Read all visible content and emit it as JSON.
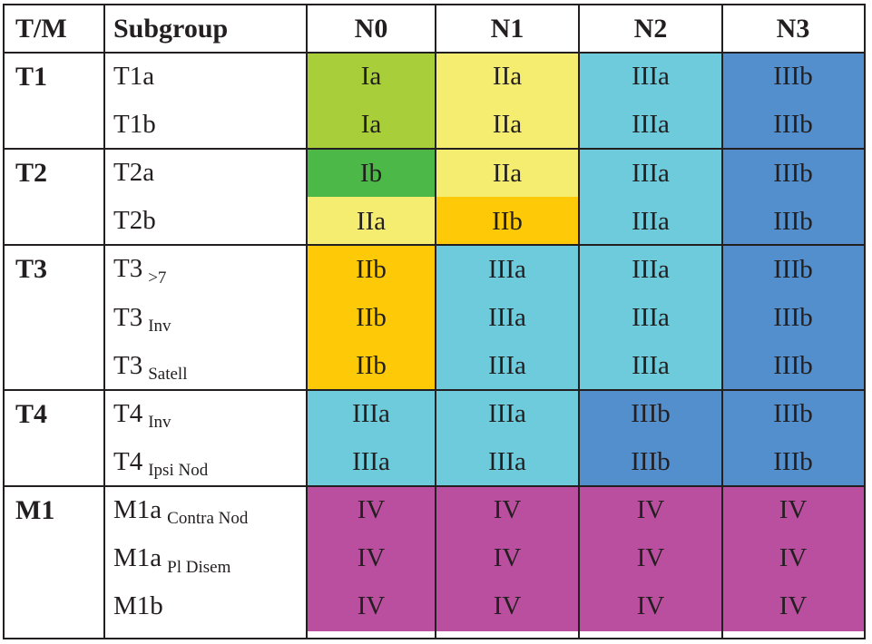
{
  "header": {
    "tm": "T/M",
    "subgroup": "Subgroup",
    "n_columns": [
      "N0",
      "N1",
      "N2",
      "N3"
    ]
  },
  "colors": {
    "Ia": "#a8cf3a",
    "Ib": "#4cb848",
    "IIa": "#f5ed6f",
    "IIb": "#fec907",
    "IIIa": "#6ecbdc",
    "IIIb": "#528fcc",
    "IV": "#bb4f9f"
  },
  "groups": [
    {
      "label": "T1",
      "rows": [
        {
          "main": "T1a",
          "sub": "",
          "stages": [
            "Ia",
            "IIa",
            "IIIa",
            "IIIb"
          ]
        },
        {
          "main": "T1b",
          "sub": "",
          "stages": [
            "Ia",
            "IIa",
            "IIIa",
            "IIIb"
          ]
        }
      ]
    },
    {
      "label": "T2",
      "rows": [
        {
          "main": "T2a",
          "sub": "",
          "stages": [
            "Ib",
            "IIa",
            "IIIa",
            "IIIb"
          ]
        },
        {
          "main": "T2b",
          "sub": "",
          "stages": [
            "IIa",
            "IIb",
            "IIIa",
            "IIIb"
          ]
        }
      ]
    },
    {
      "label": "T3",
      "rows": [
        {
          "main": "T3",
          "sub": ">7",
          "stages": [
            "IIb",
            "IIIa",
            "IIIa",
            "IIIb"
          ]
        },
        {
          "main": "T3",
          "sub": "Inv",
          "stages": [
            "IIb",
            "IIIa",
            "IIIa",
            "IIIb"
          ]
        },
        {
          "main": "T3",
          "sub": "Satell",
          "stages": [
            "IIb",
            "IIIa",
            "IIIa",
            "IIIb"
          ]
        }
      ]
    },
    {
      "label": "T4",
      "rows": [
        {
          "main": "T4",
          "sub": "Inv",
          "stages": [
            "IIIa",
            "IIIa",
            "IIIb",
            "IIIb"
          ]
        },
        {
          "main": "T4",
          "sub": "Ipsi Nod",
          "stages": [
            "IIIa",
            "IIIa",
            "IIIb",
            "IIIb"
          ]
        }
      ]
    },
    {
      "label": "M1",
      "rows": [
        {
          "main": "M1a",
          "sub": "Contra Nod",
          "stages": [
            "IV",
            "IV",
            "IV",
            "IV"
          ]
        },
        {
          "main": "M1a",
          "sub": "Pl Disem",
          "stages": [
            "IV",
            "IV",
            "IV",
            "IV"
          ]
        },
        {
          "main": "M1b",
          "sub": "",
          "stages": [
            "IV",
            "IV",
            "IV",
            "IV"
          ]
        }
      ]
    }
  ]
}
